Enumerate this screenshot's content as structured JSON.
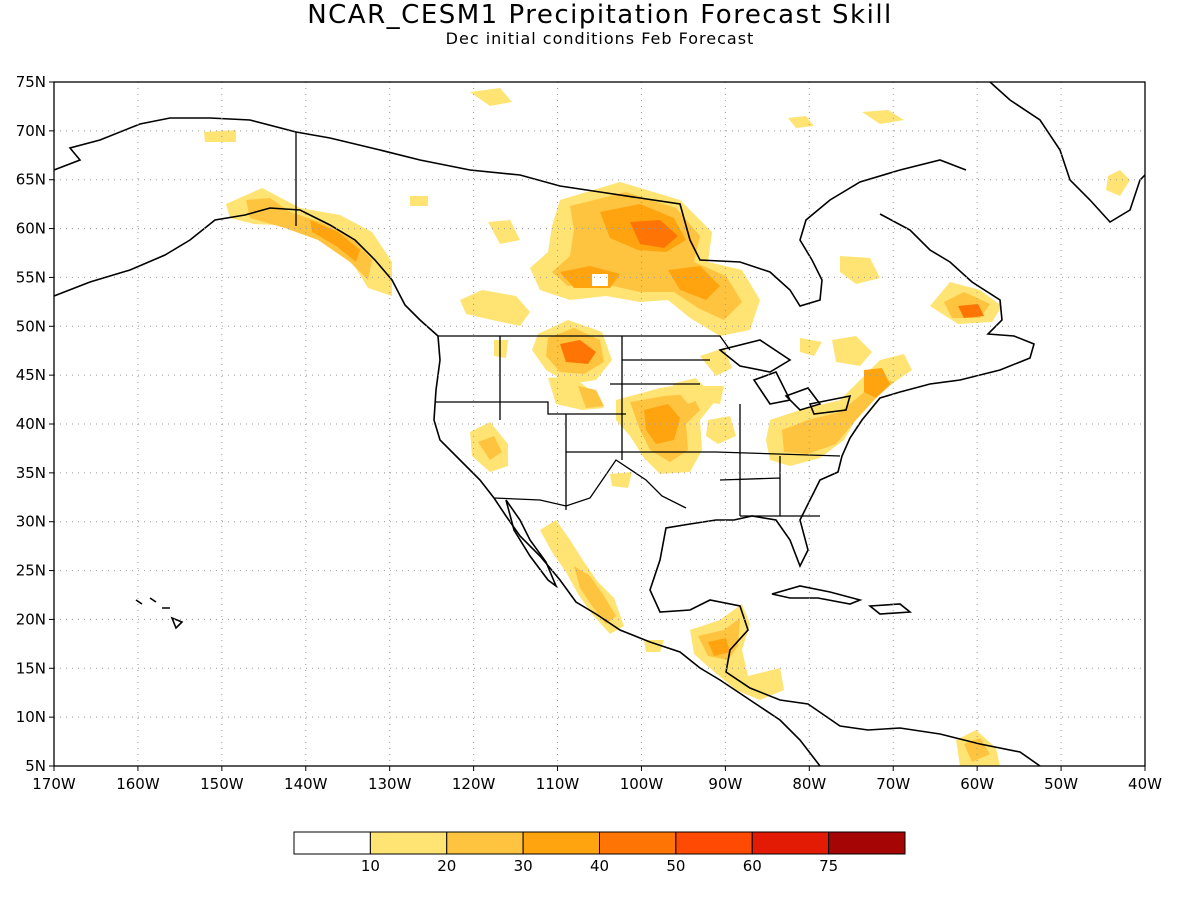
{
  "title": "NCAR_CESM1 Precipitation Forecast Skill",
  "subtitle": "Dec initial conditions  Feb Forecast",
  "map": {
    "lat_range": [
      5,
      75
    ],
    "lon_range": [
      -170,
      -40
    ],
    "lat_labels": [
      "5N",
      "10N",
      "15N",
      "20N",
      "25N",
      "30N",
      "35N",
      "40N",
      "45N",
      "50N",
      "55N",
      "60N",
      "65N",
      "70N",
      "75N"
    ],
    "lon_labels": [
      "170W",
      "160W",
      "150W",
      "140W",
      "130W",
      "120W",
      "110W",
      "100W",
      "90W",
      "80W",
      "70W",
      "60W",
      "50W",
      "40W"
    ],
    "gridlines": true
  },
  "colorbar": {
    "colors": [
      "#ffffff",
      "#ffe373",
      "#ffc43f",
      "#ffa40f",
      "#ff7505",
      "#ff4a04",
      "#e31b04",
      "#a50505"
    ],
    "labels": [
      "10",
      "20",
      "30",
      "40",
      "50",
      "60",
      "75"
    ]
  },
  "skill_regions": [
    {
      "lon": -99,
      "lat": 59.5,
      "level": 4
    },
    {
      "lon": -109,
      "lat": 47,
      "level": 4
    },
    {
      "lon": -62,
      "lat": 51,
      "level": 4
    },
    {
      "lon": -138,
      "lat": 59,
      "level": 3
    },
    {
      "lon": -103,
      "lat": 55,
      "level": 3
    },
    {
      "lon": -100,
      "lat": 40,
      "level": 3
    },
    {
      "lon": -88,
      "lat": 16.5,
      "level": 3
    },
    {
      "lon": -104,
      "lat": 21.5,
      "level": 3
    },
    {
      "lon": -72,
      "lat": 43,
      "level": 3
    }
  ]
}
